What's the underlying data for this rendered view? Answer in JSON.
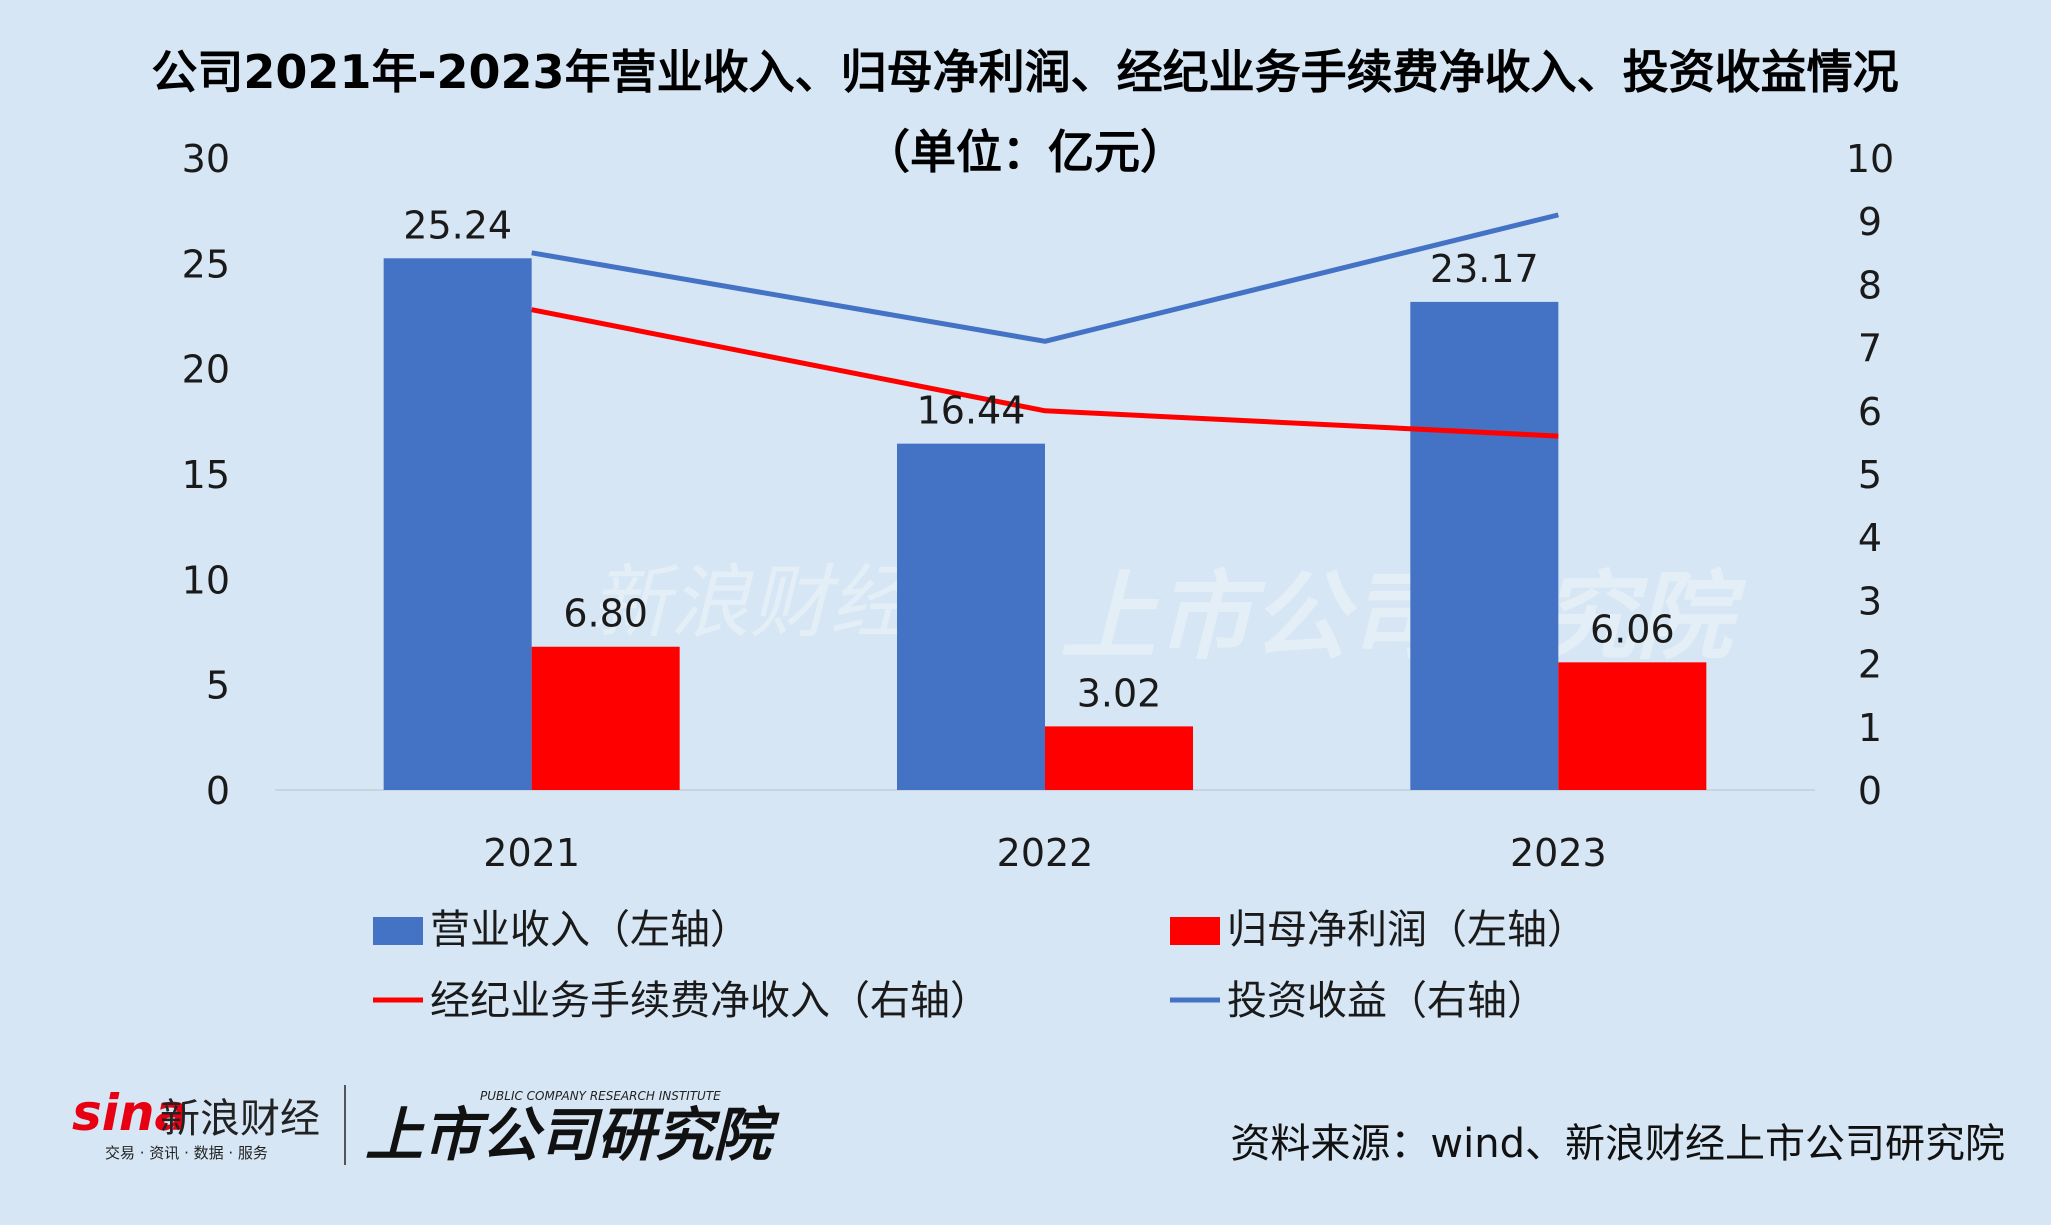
{
  "chart_data": {
    "type": "bar",
    "title": "公司2021年-2023年营业收入、归母净利润、经纪业务手续费净收入、投资收益情况",
    "subtitle": "（单位：亿元）",
    "categories": [
      "2021",
      "2022",
      "2023"
    ],
    "y_left": {
      "min": 0,
      "max": 30,
      "ticks": [
        "0",
        "5",
        "10",
        "15",
        "20",
        "25",
        "30"
      ]
    },
    "y_right": {
      "min": 0,
      "max": 10,
      "ticks": [
        "0",
        "1",
        "2",
        "3",
        "4",
        "5",
        "6",
        "7",
        "8",
        "9",
        "10"
      ]
    },
    "grid": false,
    "legend_position": "bottom",
    "series": [
      {
        "name": "营业收入（左轴）",
        "kind": "bar",
        "axis": "left",
        "color": "#4472c4",
        "values": [
          25.24,
          16.44,
          23.17
        ],
        "labels": [
          "25.24",
          "16.44",
          "23.17"
        ]
      },
      {
        "name": "归母净利润（左轴）",
        "kind": "bar",
        "axis": "left",
        "color": "#ff0000",
        "values": [
          6.8,
          3.02,
          6.06
        ],
        "labels": [
          "6.80",
          "3.02",
          "6.06"
        ]
      },
      {
        "name": "经纪业务手续费净收入（右轴）",
        "kind": "line",
        "axis": "right",
        "color": "#ff0000",
        "values": [
          7.6,
          6.0,
          5.6
        ]
      },
      {
        "name": "投资收益（右轴）",
        "kind": "line",
        "axis": "right",
        "color": "#4472c4",
        "values": [
          8.5,
          7.1,
          9.1
        ]
      }
    ]
  },
  "footer": {
    "sina_brand": "sina",
    "sina_name": "新浪财经",
    "sina_tagline": "交易 · 资讯 · 数据 · 服务",
    "institute_en": "PUBLIC COMPANY RESEARCH INSTITUTE",
    "institute_cn": "上市公司研究院",
    "source": "资料来源：wind、新浪财经上市公司研究院"
  },
  "watermark": {
    "sina_name": "新浪财经",
    "institute_cn": "上市公司研究院"
  }
}
